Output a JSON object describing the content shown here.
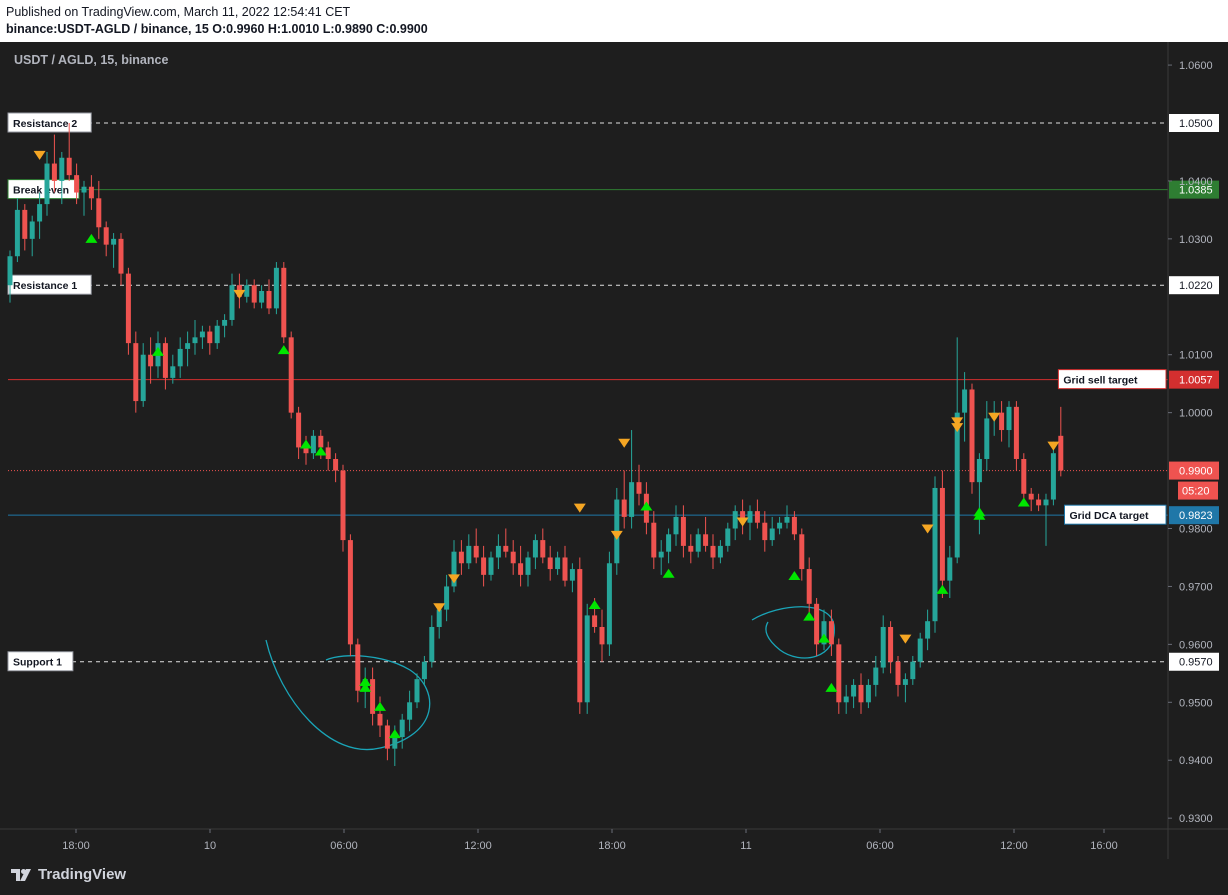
{
  "header": {
    "published": "Published on TradingView.com, March 11, 2022 12:54:41 CET",
    "symbol_line": "binance:USDT-AGLD / binance, 15  O:0.9960 H:1.0010 L:0.9890 C:0.9900"
  },
  "footer": {
    "logo_text": "TradingView"
  },
  "colors": {
    "background": "#1e1e1e",
    "up": "#26a69a",
    "down": "#ef5350",
    "buy_marker": "#00e600",
    "sell_marker": "#f5a623",
    "break_even": "#2e7d32",
    "grid_sell": "#d32f2f",
    "grid_dca": "#1f77a8",
    "annotation": "#1aa5b8"
  },
  "chart_data": {
    "type": "candlestick",
    "title": "USDT / AGLD, 15, binance",
    "timeframe": "15",
    "ylim": [
      0.929,
      1.064
    ],
    "y_ticks": [
      {
        "v": 1.06,
        "label": "1.0600"
      },
      {
        "v": 1.04,
        "label": "1.0400"
      },
      {
        "v": 1.03,
        "label": "1.0300"
      },
      {
        "v": 1.01,
        "label": "1.0100"
      },
      {
        "v": 1.0,
        "label": "1.0000"
      },
      {
        "v": 0.98,
        "label": "0.9800"
      },
      {
        "v": 0.97,
        "label": "0.9700"
      },
      {
        "v": 0.96,
        "label": "0.9600"
      },
      {
        "v": 0.95,
        "label": "0.9500"
      },
      {
        "v": 0.94,
        "label": "0.9400"
      },
      {
        "v": 0.93,
        "label": "0.9300"
      }
    ],
    "x_ticks": [
      "18:00",
      "10",
      "06:00",
      "12:00",
      "18:00",
      "11",
      "06:00",
      "12:00",
      "16:00"
    ],
    "levels": [
      {
        "name": "Resistance 2",
        "value": 1.05,
        "price_label": "1.0500",
        "style": "dashed",
        "color": "#e0e0e0",
        "label_side": "left"
      },
      {
        "name": "Break even",
        "value": 1.0385,
        "price_label": "1.0385",
        "style": "solid",
        "color": "#2e7d32",
        "label_side": "left"
      },
      {
        "name": "Resistance 1",
        "value": 1.022,
        "price_label": "1.0220",
        "style": "dashed",
        "color": "#e0e0e0",
        "label_side": "left"
      },
      {
        "name": "Grid sell target",
        "value": 1.0057,
        "price_label": "1.0057",
        "style": "solid",
        "color": "#d32f2f",
        "label_side": "right"
      },
      {
        "name": "Grid DCA target",
        "value": 0.9823,
        "price_label": "0.9823",
        "style": "solid",
        "color": "#1f77a8",
        "label_side": "right"
      },
      {
        "name": "Support 1",
        "value": 0.957,
        "price_label": "0.9570",
        "style": "dashed",
        "color": "#e0e0e0",
        "label_side": "left"
      }
    ],
    "last_price": {
      "value": 0.99,
      "label": "0.9900",
      "countdown": "05:20",
      "color": "#ef5350"
    },
    "candles": [
      {
        "o": 1.022,
        "h": 1.028,
        "l": 1.019,
        "c": 1.027
      },
      {
        "o": 1.027,
        "h": 1.037,
        "l": 1.026,
        "c": 1.035
      },
      {
        "o": 1.035,
        "h": 1.036,
        "l": 1.028,
        "c": 1.03
      },
      {
        "o": 1.03,
        "h": 1.034,
        "l": 1.027,
        "c": 1.033
      },
      {
        "o": 1.033,
        "h": 1.038,
        "l": 1.03,
        "c": 1.036
      },
      {
        "o": 1.036,
        "h": 1.045,
        "l": 1.034,
        "c": 1.043
      },
      {
        "o": 1.043,
        "h": 1.048,
        "l": 1.038,
        "c": 1.04
      },
      {
        "o": 1.04,
        "h": 1.045,
        "l": 1.036,
        "c": 1.044
      },
      {
        "o": 1.044,
        "h": 1.05,
        "l": 1.04,
        "c": 1.041
      },
      {
        "o": 1.041,
        "h": 1.043,
        "l": 1.036,
        "c": 1.038
      },
      {
        "o": 1.038,
        "h": 1.04,
        "l": 1.034,
        "c": 1.039
      },
      {
        "o": 1.039,
        "h": 1.041,
        "l": 1.035,
        "c": 1.037
      },
      {
        "o": 1.037,
        "h": 1.04,
        "l": 1.03,
        "c": 1.032
      },
      {
        "o": 1.032,
        "h": 1.033,
        "l": 1.027,
        "c": 1.029
      },
      {
        "o": 1.029,
        "h": 1.031,
        "l": 1.025,
        "c": 1.03
      },
      {
        "o": 1.03,
        "h": 1.031,
        "l": 1.022,
        "c": 1.024
      },
      {
        "o": 1.024,
        "h": 1.025,
        "l": 1.01,
        "c": 1.012
      },
      {
        "o": 1.012,
        "h": 1.014,
        "l": 1.0,
        "c": 1.002
      },
      {
        "o": 1.002,
        "h": 1.012,
        "l": 1.001,
        "c": 1.01
      },
      {
        "o": 1.01,
        "h": 1.013,
        "l": 1.005,
        "c": 1.008
      },
      {
        "o": 1.008,
        "h": 1.014,
        "l": 1.006,
        "c": 1.012
      },
      {
        "o": 1.012,
        "h": 1.013,
        "l": 1.004,
        "c": 1.006
      },
      {
        "o": 1.006,
        "h": 1.01,
        "l": 1.005,
        "c": 1.008
      },
      {
        "o": 1.008,
        "h": 1.013,
        "l": 1.006,
        "c": 1.011
      },
      {
        "o": 1.011,
        "h": 1.014,
        "l": 1.008,
        "c": 1.012
      },
      {
        "o": 1.012,
        "h": 1.016,
        "l": 1.01,
        "c": 1.013
      },
      {
        "o": 1.013,
        "h": 1.015,
        "l": 1.011,
        "c": 1.014
      },
      {
        "o": 1.014,
        "h": 1.015,
        "l": 1.01,
        "c": 1.012
      },
      {
        "o": 1.012,
        "h": 1.016,
        "l": 1.011,
        "c": 1.015
      },
      {
        "o": 1.015,
        "h": 1.017,
        "l": 1.013,
        "c": 1.016
      },
      {
        "o": 1.016,
        "h": 1.024,
        "l": 1.015,
        "c": 1.022
      },
      {
        "o": 1.022,
        "h": 1.024,
        "l": 1.018,
        "c": 1.02
      },
      {
        "o": 1.02,
        "h": 1.023,
        "l": 1.019,
        "c": 1.022
      },
      {
        "o": 1.022,
        "h": 1.023,
        "l": 1.018,
        "c": 1.019
      },
      {
        "o": 1.019,
        "h": 1.022,
        "l": 1.018,
        "c": 1.021
      },
      {
        "o": 1.021,
        "h": 1.023,
        "l": 1.017,
        "c": 1.018
      },
      {
        "o": 1.018,
        "h": 1.026,
        "l": 1.017,
        "c": 1.025
      },
      {
        "o": 1.025,
        "h": 1.026,
        "l": 1.012,
        "c": 1.013
      },
      {
        "o": 1.013,
        "h": 1.014,
        "l": 0.999,
        "c": 1.0
      },
      {
        "o": 1.0,
        "h": 1.001,
        "l": 0.992,
        "c": 0.994
      },
      {
        "o": 0.994,
        "h": 0.996,
        "l": 0.991,
        "c": 0.993
      },
      {
        "o": 0.993,
        "h": 0.997,
        "l": 0.992,
        "c": 0.996
      },
      {
        "o": 0.996,
        "h": 0.997,
        "l": 0.992,
        "c": 0.994
      },
      {
        "o": 0.994,
        "h": 0.995,
        "l": 0.99,
        "c": 0.992
      },
      {
        "o": 0.992,
        "h": 0.993,
        "l": 0.988,
        "c": 0.99
      },
      {
        "o": 0.99,
        "h": 0.991,
        "l": 0.976,
        "c": 0.978
      },
      {
        "o": 0.978,
        "h": 0.979,
        "l": 0.958,
        "c": 0.96
      },
      {
        "o": 0.96,
        "h": 0.961,
        "l": 0.95,
        "c": 0.952
      },
      {
        "o": 0.952,
        "h": 0.956,
        "l": 0.949,
        "c": 0.954
      },
      {
        "o": 0.954,
        "h": 0.956,
        "l": 0.946,
        "c": 0.948
      },
      {
        "o": 0.948,
        "h": 0.951,
        "l": 0.944,
        "c": 0.946
      },
      {
        "o": 0.946,
        "h": 0.947,
        "l": 0.94,
        "c": 0.942
      },
      {
        "o": 0.942,
        "h": 0.946,
        "l": 0.939,
        "c": 0.944
      },
      {
        "o": 0.944,
        "h": 0.948,
        "l": 0.942,
        "c": 0.947
      },
      {
        "o": 0.947,
        "h": 0.952,
        "l": 0.945,
        "c": 0.95
      },
      {
        "o": 0.95,
        "h": 0.955,
        "l": 0.949,
        "c": 0.954
      },
      {
        "o": 0.954,
        "h": 0.958,
        "l": 0.953,
        "c": 0.957
      },
      {
        "o": 0.957,
        "h": 0.965,
        "l": 0.956,
        "c": 0.963
      },
      {
        "o": 0.963,
        "h": 0.967,
        "l": 0.961,
        "c": 0.966
      },
      {
        "o": 0.966,
        "h": 0.972,
        "l": 0.964,
        "c": 0.97
      },
      {
        "o": 0.97,
        "h": 0.978,
        "l": 0.969,
        "c": 0.976
      },
      {
        "o": 0.976,
        "h": 0.978,
        "l": 0.972,
        "c": 0.974
      },
      {
        "o": 0.974,
        "h": 0.979,
        "l": 0.973,
        "c": 0.977
      },
      {
        "o": 0.977,
        "h": 0.98,
        "l": 0.974,
        "c": 0.975
      },
      {
        "o": 0.975,
        "h": 0.977,
        "l": 0.97,
        "c": 0.972
      },
      {
        "o": 0.972,
        "h": 0.976,
        "l": 0.971,
        "c": 0.975
      },
      {
        "o": 0.975,
        "h": 0.979,
        "l": 0.973,
        "c": 0.977
      },
      {
        "o": 0.977,
        "h": 0.98,
        "l": 0.975,
        "c": 0.976
      },
      {
        "o": 0.976,
        "h": 0.978,
        "l": 0.972,
        "c": 0.974
      },
      {
        "o": 0.974,
        "h": 0.977,
        "l": 0.97,
        "c": 0.972
      },
      {
        "o": 0.972,
        "h": 0.976,
        "l": 0.97,
        "c": 0.975
      },
      {
        "o": 0.975,
        "h": 0.979,
        "l": 0.973,
        "c": 0.978
      },
      {
        "o": 0.978,
        "h": 0.98,
        "l": 0.974,
        "c": 0.975
      },
      {
        "o": 0.975,
        "h": 0.977,
        "l": 0.971,
        "c": 0.973
      },
      {
        "o": 0.973,
        "h": 0.976,
        "l": 0.972,
        "c": 0.975
      },
      {
        "o": 0.975,
        "h": 0.977,
        "l": 0.97,
        "c": 0.971
      },
      {
        "o": 0.971,
        "h": 0.974,
        "l": 0.969,
        "c": 0.973
      },
      {
        "o": 0.973,
        "h": 0.975,
        "l": 0.948,
        "c": 0.95
      },
      {
        "o": 0.95,
        "h": 0.967,
        "l": 0.948,
        "c": 0.965
      },
      {
        "o": 0.965,
        "h": 0.968,
        "l": 0.962,
        "c": 0.963
      },
      {
        "o": 0.963,
        "h": 0.966,
        "l": 0.957,
        "c": 0.96
      },
      {
        "o": 0.96,
        "h": 0.976,
        "l": 0.958,
        "c": 0.974
      },
      {
        "o": 0.974,
        "h": 0.987,
        "l": 0.972,
        "c": 0.985
      },
      {
        "o": 0.985,
        "h": 0.99,
        "l": 0.98,
        "c": 0.982
      },
      {
        "o": 0.982,
        "h": 0.997,
        "l": 0.98,
        "c": 0.988
      },
      {
        "o": 0.988,
        "h": 0.991,
        "l": 0.984,
        "c": 0.986
      },
      {
        "o": 0.986,
        "h": 0.988,
        "l": 0.979,
        "c": 0.981
      },
      {
        "o": 0.981,
        "h": 0.983,
        "l": 0.973,
        "c": 0.975
      },
      {
        "o": 0.975,
        "h": 0.978,
        "l": 0.972,
        "c": 0.976
      },
      {
        "o": 0.976,
        "h": 0.98,
        "l": 0.974,
        "c": 0.979
      },
      {
        "o": 0.979,
        "h": 0.984,
        "l": 0.977,
        "c": 0.982
      },
      {
        "o": 0.982,
        "h": 0.984,
        "l": 0.975,
        "c": 0.977
      },
      {
        "o": 0.977,
        "h": 0.979,
        "l": 0.974,
        "c": 0.976
      },
      {
        "o": 0.976,
        "h": 0.98,
        "l": 0.975,
        "c": 0.979
      },
      {
        "o": 0.979,
        "h": 0.982,
        "l": 0.976,
        "c": 0.977
      },
      {
        "o": 0.977,
        "h": 0.979,
        "l": 0.973,
        "c": 0.975
      },
      {
        "o": 0.975,
        "h": 0.978,
        "l": 0.974,
        "c": 0.977
      },
      {
        "o": 0.977,
        "h": 0.981,
        "l": 0.976,
        "c": 0.98
      },
      {
        "o": 0.98,
        "h": 0.984,
        "l": 0.978,
        "c": 0.983
      },
      {
        "o": 0.983,
        "h": 0.985,
        "l": 0.979,
        "c": 0.981
      },
      {
        "o": 0.981,
        "h": 0.984,
        "l": 0.978,
        "c": 0.983
      },
      {
        "o": 0.983,
        "h": 0.985,
        "l": 0.98,
        "c": 0.981
      },
      {
        "o": 0.981,
        "h": 0.983,
        "l": 0.976,
        "c": 0.978
      },
      {
        "o": 0.978,
        "h": 0.982,
        "l": 0.977,
        "c": 0.98
      },
      {
        "o": 0.98,
        "h": 0.982,
        "l": 0.979,
        "c": 0.981
      },
      {
        "o": 0.981,
        "h": 0.984,
        "l": 0.98,
        "c": 0.982
      },
      {
        "o": 0.982,
        "h": 0.983,
        "l": 0.978,
        "c": 0.979
      },
      {
        "o": 0.979,
        "h": 0.98,
        "l": 0.971,
        "c": 0.973
      },
      {
        "o": 0.973,
        "h": 0.975,
        "l": 0.965,
        "c": 0.967
      },
      {
        "o": 0.967,
        "h": 0.968,
        "l": 0.958,
        "c": 0.96
      },
      {
        "o": 0.96,
        "h": 0.966,
        "l": 0.959,
        "c": 0.964
      },
      {
        "o": 0.964,
        "h": 0.966,
        "l": 0.958,
        "c": 0.96
      },
      {
        "o": 0.96,
        "h": 0.961,
        "l": 0.948,
        "c": 0.95
      },
      {
        "o": 0.95,
        "h": 0.953,
        "l": 0.948,
        "c": 0.951
      },
      {
        "o": 0.951,
        "h": 0.954,
        "l": 0.949,
        "c": 0.953
      },
      {
        "o": 0.953,
        "h": 0.955,
        "l": 0.948,
        "c": 0.95
      },
      {
        "o": 0.95,
        "h": 0.954,
        "l": 0.949,
        "c": 0.953
      },
      {
        "o": 0.953,
        "h": 0.958,
        "l": 0.951,
        "c": 0.956
      },
      {
        "o": 0.956,
        "h": 0.965,
        "l": 0.955,
        "c": 0.963
      },
      {
        "o": 0.963,
        "h": 0.964,
        "l": 0.955,
        "c": 0.957
      },
      {
        "o": 0.957,
        "h": 0.958,
        "l": 0.951,
        "c": 0.953
      },
      {
        "o": 0.953,
        "h": 0.955,
        "l": 0.95,
        "c": 0.954
      },
      {
        "o": 0.954,
        "h": 0.958,
        "l": 0.953,
        "c": 0.957
      },
      {
        "o": 0.957,
        "h": 0.962,
        "l": 0.956,
        "c": 0.961
      },
      {
        "o": 0.961,
        "h": 0.966,
        "l": 0.959,
        "c": 0.964
      },
      {
        "o": 0.964,
        "h": 0.989,
        "l": 0.962,
        "c": 0.987
      },
      {
        "o": 0.987,
        "h": 0.99,
        "l": 0.968,
        "c": 0.971
      },
      {
        "o": 0.971,
        "h": 0.977,
        "l": 0.968,
        "c": 0.975
      },
      {
        "o": 0.975,
        "h": 1.013,
        "l": 0.974,
        "c": 1.0
      },
      {
        "o": 1.0,
        "h": 1.007,
        "l": 0.995,
        "c": 1.004
      },
      {
        "o": 1.004,
        "h": 1.005,
        "l": 0.986,
        "c": 0.988
      },
      {
        "o": 0.988,
        "h": 0.993,
        "l": 0.979,
        "c": 0.992
      },
      {
        "o": 0.992,
        "h": 1.002,
        "l": 0.99,
        "c": 0.999
      },
      {
        "o": 0.999,
        "h": 1.002,
        "l": 0.996,
        "c": 1.0
      },
      {
        "o": 1.0,
        "h": 1.002,
        "l": 0.995,
        "c": 0.997
      },
      {
        "o": 0.997,
        "h": 1.002,
        "l": 0.994,
        "c": 1.001
      },
      {
        "o": 1.001,
        "h": 1.002,
        "l": 0.99,
        "c": 0.992
      },
      {
        "o": 0.992,
        "h": 0.993,
        "l": 0.984,
        "c": 0.986
      },
      {
        "o": 0.986,
        "h": 0.987,
        "l": 0.983,
        "c": 0.985
      },
      {
        "o": 0.985,
        "h": 0.986,
        "l": 0.983,
        "c": 0.984
      },
      {
        "o": 0.984,
        "h": 0.986,
        "l": 0.977,
        "c": 0.985
      },
      {
        "o": 0.985,
        "h": 0.995,
        "l": 0.984,
        "c": 0.993
      },
      {
        "o": 0.996,
        "h": 1.001,
        "l": 0.989,
        "c": 0.99
      }
    ],
    "markers": [
      {
        "i": 4,
        "type": "sell",
        "price": 1.0445
      },
      {
        "i": 11,
        "type": "buy",
        "price": 1.03
      },
      {
        "i": 20,
        "type": "buy",
        "price": 1.0105
      },
      {
        "i": 31,
        "type": "sell",
        "price": 1.0205
      },
      {
        "i": 37,
        "type": "buy",
        "price": 1.0108
      },
      {
        "i": 40,
        "type": "buy",
        "price": 0.9945
      },
      {
        "i": 42,
        "type": "buy",
        "price": 0.9933
      },
      {
        "i": 48,
        "type": "buy",
        "price": 0.9535
      },
      {
        "i": 48,
        "type": "buy",
        "price": 0.9525
      },
      {
        "i": 50,
        "type": "buy",
        "price": 0.9492
      },
      {
        "i": 52,
        "type": "buy",
        "price": 0.9445
      },
      {
        "i": 58,
        "type": "sell",
        "price": 0.9664
      },
      {
        "i": 60,
        "type": "sell",
        "price": 0.9714
      },
      {
        "i": 77,
        "type": "sell",
        "price": 0.9836
      },
      {
        "i": 79,
        "type": "buy",
        "price": 0.9668
      },
      {
        "i": 82,
        "type": "sell",
        "price": 0.9789
      },
      {
        "i": 83,
        "type": "sell",
        "price": 0.9948
      },
      {
        "i": 86,
        "type": "buy",
        "price": 0.9838
      },
      {
        "i": 89,
        "type": "buy",
        "price": 0.9722
      },
      {
        "i": 99,
        "type": "sell",
        "price": 0.9812
      },
      {
        "i": 106,
        "type": "buy",
        "price": 0.9718
      },
      {
        "i": 108,
        "type": "buy",
        "price": 0.9648
      },
      {
        "i": 110,
        "type": "buy",
        "price": 0.961
      },
      {
        "i": 111,
        "type": "buy",
        "price": 0.9525
      },
      {
        "i": 121,
        "type": "sell",
        "price": 0.961
      },
      {
        "i": 124,
        "type": "sell",
        "price": 0.98
      },
      {
        "i": 126,
        "type": "buy",
        "price": 0.9694
      },
      {
        "i": 128,
        "type": "sell",
        "price": 0.9975
      },
      {
        "i": 128,
        "type": "sell",
        "price": 0.9985
      },
      {
        "i": 131,
        "type": "buy",
        "price": 0.9828
      },
      {
        "i": 131,
        "type": "buy",
        "price": 0.9822
      },
      {
        "i": 133,
        "type": "sell",
        "price": 0.9993
      },
      {
        "i": 137,
        "type": "buy",
        "price": 0.9845
      },
      {
        "i": 141,
        "type": "sell",
        "price": 0.9943
      }
    ]
  }
}
